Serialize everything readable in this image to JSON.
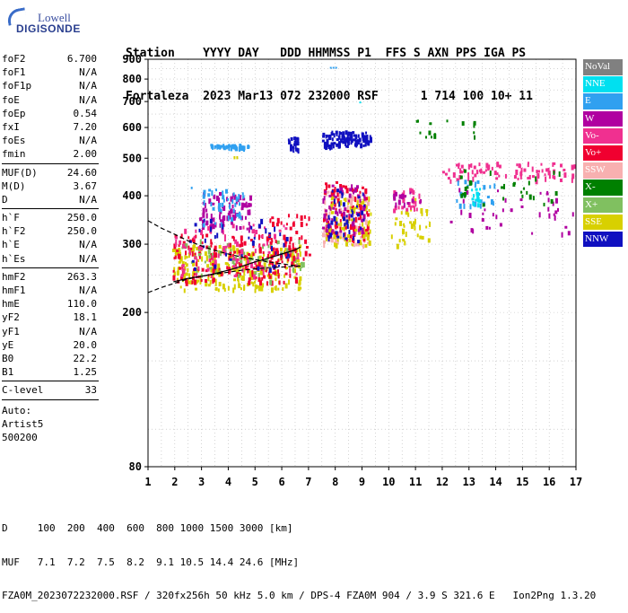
{
  "logo": {
    "brand_top": "Lowell",
    "brand_bottom": "DIGISONDE"
  },
  "header": {
    "line1": "Station    YYYY DAY   DDD HHMMSS P1  FFS S AXN PPS IGA PS",
    "line2": "Fortaleza  2023 Mar13 072 232000 RSF      1 714 100 10+ 11"
  },
  "params": {
    "group1": [
      {
        "label": "foF2",
        "value": "6.700"
      },
      {
        "label": "foF1",
        "value": "N/A"
      },
      {
        "label": "foF1p",
        "value": "N/A"
      },
      {
        "label": "foE",
        "value": "N/A"
      },
      {
        "label": "foEp",
        "value": "0.54"
      },
      {
        "label": "fxI",
        "value": "7.20"
      },
      {
        "label": "foEs",
        "value": "N/A"
      },
      {
        "label": "fmin",
        "value": "2.00"
      }
    ],
    "group2": [
      {
        "label": "MUF(D)",
        "value": "24.60"
      },
      {
        "label": "M(D)",
        "value": "3.67"
      },
      {
        "label": "D",
        "value": "N/A"
      }
    ],
    "group3": [
      {
        "label": "h`F",
        "value": "250.0"
      },
      {
        "label": "h`F2",
        "value": "250.0"
      },
      {
        "label": "h`E",
        "value": "N/A"
      },
      {
        "label": "h`Es",
        "value": "N/A"
      }
    ],
    "group4": [
      {
        "label": "hmF2",
        "value": "263.3"
      },
      {
        "label": "hmF1",
        "value": "N/A"
      },
      {
        "label": "hmE",
        "value": "110.0"
      },
      {
        "label": "yF2",
        "value": "18.1"
      },
      {
        "label": "yF1",
        "value": "N/A"
      },
      {
        "label": "yE",
        "value": "20.0"
      },
      {
        "label": "B0",
        "value": "22.2"
      },
      {
        "label": "B1",
        "value": "1.25"
      }
    ],
    "group5": [
      {
        "label": "C-level",
        "value": "33"
      }
    ],
    "auto": [
      "Auto:",
      "Artist5",
      "500200"
    ]
  },
  "legend": [
    {
      "label": "NoVal",
      "color": "#808080"
    },
    {
      "label": "NNE",
      "color": "#00e0f0"
    },
    {
      "label": "E",
      "color": "#30a0f0"
    },
    {
      "label": "W",
      "color": "#b000a0"
    },
    {
      "label": "Vo-",
      "color": "#f03090"
    },
    {
      "label": "Vo+",
      "color": "#f00030"
    },
    {
      "label": "SSW",
      "color": "#f8b0b0"
    },
    {
      "label": "X-",
      "color": "#008000"
    },
    {
      "label": "X+",
      "color": "#80c060"
    },
    {
      "label": "SSE",
      "color": "#d8d000"
    },
    {
      "label": "NNW",
      "color": "#1010c0"
    }
  ],
  "footer": {
    "line1": "D     100  200  400  600  800 1000 1500 3000 [km]",
    "line2": "MUF   7.1  7.2  7.5  8.2  9.1 10.5 14.4 24.6 [MHz]",
    "line3": "FZA0M_2023072232000.RSF / 320fx256h 50 kHz 5.0 km / DPS-4 FZA0M 904 / 3.9 S 321.6 E   Ion2Png 1.3.20"
  },
  "chart_data": {
    "type": "scatter",
    "title": "",
    "xlabel": "",
    "ylabel": "",
    "xlim": [
      1,
      17
    ],
    "ylim": [
      80,
      900
    ],
    "y_scale": "log",
    "x_ticks": [
      1,
      2,
      3,
      4,
      5,
      6,
      7,
      8,
      9,
      10,
      11,
      12,
      13,
      14,
      15,
      16,
      17
    ],
    "y_ticks": [
      80,
      200,
      300,
      400,
      500,
      600,
      700,
      800,
      900
    ],
    "grid": true,
    "clusters": [
      {
        "series": "SSE",
        "x": [
          1.9,
          6.7
        ],
        "y": [
          230,
          300
        ],
        "n": 260
      },
      {
        "series": "Vo+",
        "x": [
          1.9,
          6.6
        ],
        "y": [
          240,
          320
        ],
        "n": 180
      },
      {
        "series": "X+",
        "x": [
          2.2,
          6.8
        ],
        "y": [
          240,
          310
        ],
        "n": 60
      },
      {
        "series": "Vo-",
        "x": [
          2.0,
          6.6
        ],
        "y": [
          250,
          340
        ],
        "n": 90
      },
      {
        "series": "W",
        "x": [
          2.9,
          4.8
        ],
        "y": [
          330,
          410
        ],
        "n": 90
      },
      {
        "series": "E",
        "x": [
          3.0,
          4.6
        ],
        "y": [
          340,
          420
        ],
        "n": 40
      },
      {
        "series": "NNW",
        "x": [
          2.5,
          6.5
        ],
        "y": [
          260,
          350
        ],
        "n": 40
      },
      {
        "series": "Vo+",
        "x": [
          5.5,
          7.0
        ],
        "y": [
          270,
          360
        ],
        "n": 40
      },
      {
        "series": "SSW",
        "x": [
          7.5,
          9.2
        ],
        "y": [
          300,
          420
        ],
        "n": 120
      },
      {
        "series": "Vo+",
        "x": [
          7.5,
          9.2
        ],
        "y": [
          310,
          440
        ],
        "n": 90
      },
      {
        "series": "SSE",
        "x": [
          7.6,
          9.3
        ],
        "y": [
          300,
          400
        ],
        "n": 70
      },
      {
        "series": "W",
        "x": [
          7.5,
          9.1
        ],
        "y": [
          320,
          430
        ],
        "n": 60
      },
      {
        "series": "NNW",
        "x": [
          7.6,
          9.1
        ],
        "y": [
          300,
          420
        ],
        "n": 40
      },
      {
        "series": "E",
        "x": [
          3.3,
          4.8
        ],
        "y": [
          535,
          545
        ],
        "n": 40
      },
      {
        "series": "NNW",
        "x": [
          6.2,
          6.6
        ],
        "y": [
          530,
          570
        ],
        "n": 25
      },
      {
        "series": "NNW",
        "x": [
          7.5,
          9.3
        ],
        "y": [
          540,
          590
        ],
        "n": 110
      },
      {
        "series": "SSE",
        "x": [
          10.0,
          11.5
        ],
        "y": [
          300,
          400
        ],
        "n": 35
      },
      {
        "series": "Vo-",
        "x": [
          10.0,
          11.2
        ],
        "y": [
          370,
          420
        ],
        "n": 25
      },
      {
        "series": "W",
        "x": [
          10.0,
          11.2
        ],
        "y": [
          380,
          410
        ],
        "n": 15
      },
      {
        "series": "Vo-",
        "x": [
          12.0,
          17.0
        ],
        "y": [
          440,
          490
        ],
        "n": 90
      },
      {
        "series": "E",
        "x": [
          12.5,
          14.0
        ],
        "y": [
          380,
          440
        ],
        "n": 30
      },
      {
        "series": "W",
        "x": [
          12.2,
          16.9
        ],
        "y": [
          320,
          420
        ],
        "n": 40
      },
      {
        "series": "X-",
        "x": [
          12.3,
          16.5
        ],
        "y": [
          380,
          470
        ],
        "n": 30
      },
      {
        "series": "NNE",
        "x": [
          13.0,
          13.4
        ],
        "y": [
          380,
          420
        ],
        "n": 15
      },
      {
        "series": "X-",
        "x": [
          11.0,
          13.3
        ],
        "y": [
          570,
          640
        ],
        "n": 15
      }
    ],
    "isolated_points": [
      {
        "series": "E",
        "x": [
          7.8,
          8.1
        ],
        "y": [
          855,
          860
        ]
      },
      {
        "series": "NNE",
        "x": [
          8.9,
          9.0
        ],
        "y": [
          693,
          700
        ]
      },
      {
        "series": "SSE",
        "x": [
          4.2,
          4.4
        ],
        "y": [
          497,
          506
        ]
      },
      {
        "series": "E",
        "x": [
          2.6,
          2.7
        ],
        "y": [
          416,
          422
        ]
      }
    ],
    "trace_virtual": {
      "series": "trace",
      "x": [
        1.95,
        2.5,
        3.0,
        3.5,
        4.0,
        4.5,
        5.0,
        5.5,
        6.0,
        6.5,
        6.7
      ],
      "y": [
        240,
        245,
        248,
        252,
        257,
        263,
        270,
        276,
        283,
        290,
        295
      ]
    },
    "profile_true_height": {
      "series": "profile",
      "x": [
        1.0,
        1.5,
        2.0,
        2.5,
        3.0,
        3.5,
        4.0,
        4.5,
        5.0,
        5.5,
        6.0,
        6.5,
        6.7
      ],
      "y": [
        225,
        232,
        238,
        244,
        248,
        251,
        254,
        257,
        259,
        261,
        262,
        263,
        263.3
      ]
    },
    "profile_topside": {
      "series": "profile",
      "x": [
        1.0,
        1.5,
        2.0,
        2.5,
        3.0,
        3.5,
        4.0,
        4.5,
        5.0,
        5.5,
        6.0,
        6.5,
        6.7
      ],
      "y": [
        345,
        330,
        318,
        306,
        297,
        289,
        283,
        278,
        274,
        270,
        267,
        264,
        263.3
      ]
    }
  }
}
